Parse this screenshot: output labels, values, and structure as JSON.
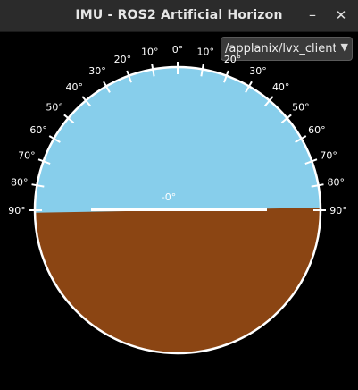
{
  "window": {
    "title": "IMU - ROS2 Artificial Horizon",
    "minimize_icon": "minimize-icon",
    "close_icon": "close-icon"
  },
  "topic_selector": {
    "value": "/applanix/lvx_client/imu",
    "arrow_icon": "chevron-down-icon"
  },
  "horizon": {
    "sky_color": "#87CEEB",
    "ground_color": "#8B4513",
    "frame_color": "#FFFFFF",
    "roll_deg": 1,
    "pitch_deg": 0,
    "pitch_label": "-0°",
    "scale_labels": [
      "90°",
      "80°",
      "70°",
      "60°",
      "50°",
      "40°",
      "30°",
      "20°",
      "10°",
      "0°",
      "10°",
      "20°",
      "30°",
      "40°",
      "50°",
      "60°",
      "70°",
      "80°",
      "90°"
    ]
  }
}
